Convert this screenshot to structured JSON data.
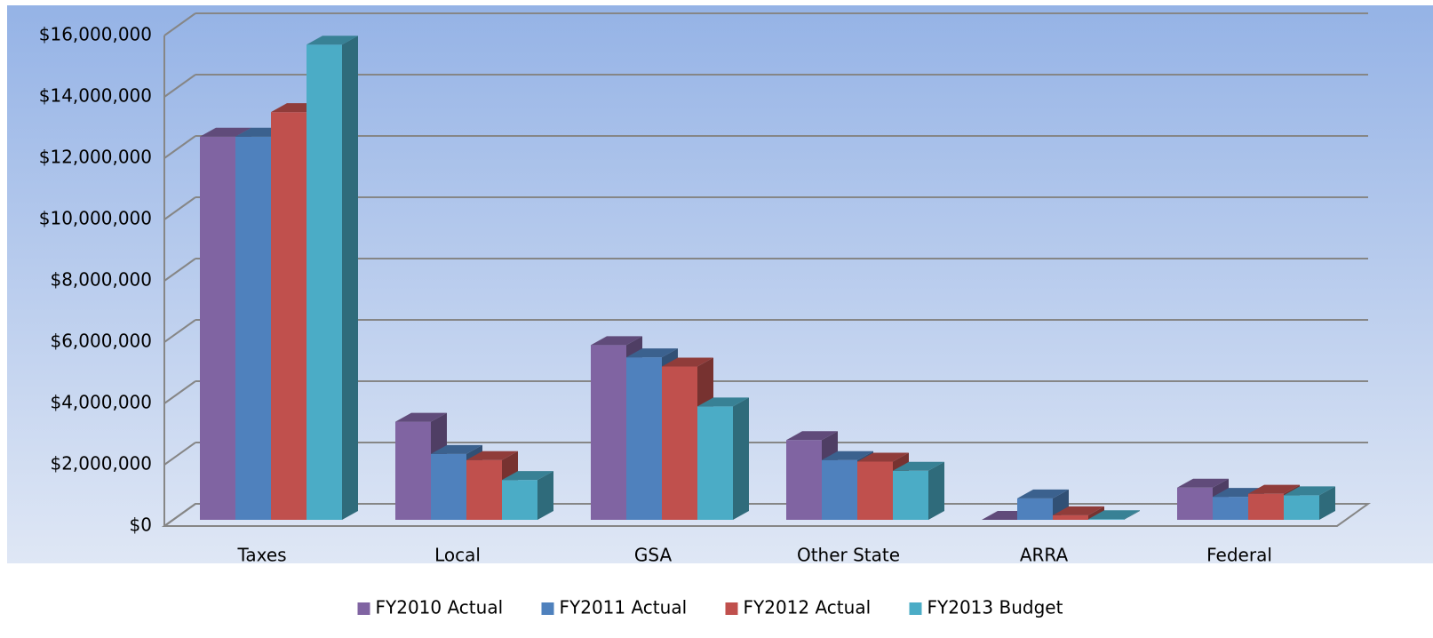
{
  "chart_data": {
    "type": "bar3d",
    "categories": [
      "Taxes",
      "Local",
      "GSA",
      "Other State",
      "ARRA",
      "Federal"
    ],
    "series": [
      {
        "name": "FY2010 Actual",
        "color": "#8064a2",
        "values": [
          12500000,
          3200000,
          5700000,
          2600000,
          0,
          1050000
        ]
      },
      {
        "name": "FY2011 Actual",
        "color": "#4f81bd",
        "values": [
          12500000,
          2150000,
          5300000,
          1950000,
          700000,
          750000
        ]
      },
      {
        "name": "FY2012 Actual",
        "color": "#c0504d",
        "values": [
          13300000,
          1950000,
          5000000,
          1900000,
          150000,
          850000
        ]
      },
      {
        "name": "FY2013 Budget",
        "color": "#4bacc6",
        "values": [
          15500000,
          1300000,
          3700000,
          1600000,
          20000,
          800000
        ]
      }
    ],
    "ylim": [
      0,
      16000000
    ],
    "yticks": [
      {
        "value": 0,
        "label": "$0"
      },
      {
        "value": 2000000,
        "label": "$2,000,000"
      },
      {
        "value": 4000000,
        "label": "$4,000,000"
      },
      {
        "value": 6000000,
        "label": "$6,000,000"
      },
      {
        "value": 8000000,
        "label": "$8,000,000"
      },
      {
        "value": 10000000,
        "label": "$10,000,000"
      },
      {
        "value": 12000000,
        "label": "$12,000,000"
      },
      {
        "value": 14000000,
        "label": "$14,000,000"
      },
      {
        "value": 16000000,
        "label": "$16,000,000"
      }
    ],
    "grid": true,
    "legend": "bottom"
  }
}
